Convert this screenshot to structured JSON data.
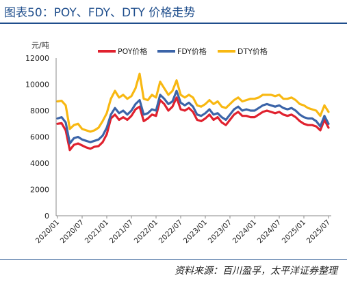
{
  "header": {
    "title": "图表50：POY、FDY、DTY 价格走势"
  },
  "footer": {
    "source": "资料来源：百川盈孚，太平洋证券整理"
  },
  "chart_data": {
    "type": "line",
    "unit_label": "元/吨",
    "ylim": [
      0,
      12000
    ],
    "yticks": [
      0,
      2000,
      4000,
      6000,
      8000,
      10000,
      12000
    ],
    "xticks": [
      "2020/01",
      "2020/07",
      "2021/01",
      "2021/07",
      "2022/01",
      "2022/07",
      "2023/01",
      "2023/07",
      "2024/01",
      "2024/07",
      "2025/01",
      "2025/07"
    ],
    "legend_position": "top",
    "grid": false,
    "x": [
      "2020/01",
      "2020/02",
      "2020/03",
      "2020/04",
      "2020/05",
      "2020/06",
      "2020/07",
      "2020/08",
      "2020/09",
      "2020/10",
      "2020/11",
      "2020/12",
      "2021/01",
      "2021/02",
      "2021/03",
      "2021/04",
      "2021/05",
      "2021/06",
      "2021/07",
      "2021/08",
      "2021/09",
      "2021/10",
      "2021/11",
      "2021/12",
      "2022/01",
      "2022/02",
      "2022/03",
      "2022/04",
      "2022/05",
      "2022/06",
      "2022/07",
      "2022/08",
      "2022/09",
      "2022/10",
      "2022/11",
      "2022/12",
      "2023/01",
      "2023/02",
      "2023/03",
      "2023/04",
      "2023/05",
      "2023/06",
      "2023/07",
      "2023/08",
      "2023/09",
      "2023/10",
      "2023/11",
      "2023/12",
      "2024/01",
      "2024/02",
      "2024/03",
      "2024/04",
      "2024/05",
      "2024/06",
      "2024/07",
      "2024/08",
      "2024/09",
      "2024/10",
      "2024/11",
      "2024/12",
      "2025/01",
      "2025/02",
      "2025/03",
      "2025/04",
      "2025/05",
      "2025/06",
      "2025/07"
    ],
    "series": [
      {
        "name": "POY价格",
        "color": "#e0212e",
        "values": [
          7000,
          7050,
          6500,
          5000,
          5400,
          5500,
          5350,
          5200,
          5100,
          5250,
          5300,
          5600,
          6200,
          7400,
          7700,
          7300,
          7500,
          7300,
          7600,
          8100,
          8300,
          7200,
          7400,
          7700,
          7600,
          8800,
          8500,
          8000,
          8300,
          9000,
          8100,
          8000,
          8200,
          7900,
          7300,
          7200,
          7400,
          7700,
          7300,
          7500,
          7100,
          6900,
          7300,
          7700,
          7900,
          7600,
          7600,
          7500,
          7500,
          7700,
          7900,
          8000,
          7900,
          7800,
          7900,
          7700,
          7600,
          7700,
          7500,
          7200,
          7000,
          6900,
          6900,
          6800,
          6500,
          7300,
          6700
        ]
      },
      {
        "name": "FDY价格",
        "color": "#3b64a8",
        "values": [
          7400,
          7500,
          7100,
          5500,
          5900,
          6000,
          5800,
          5700,
          5600,
          5700,
          5800,
          6100,
          6700,
          7700,
          8200,
          7800,
          8000,
          7700,
          8000,
          8500,
          8800,
          7700,
          7800,
          8100,
          8000,
          9200,
          8900,
          8500,
          8700,
          9500,
          8600,
          8400,
          8600,
          8300,
          7700,
          7600,
          7800,
          8100,
          7700,
          7800,
          7500,
          7300,
          7700,
          8100,
          8300,
          8000,
          8100,
          8000,
          8000,
          8200,
          8400,
          8500,
          8400,
          8300,
          8400,
          8200,
          8100,
          8200,
          8000,
          7700,
          7500,
          7400,
          7400,
          7200,
          6800,
          7600,
          7000
        ]
      },
      {
        "name": "DTY价格",
        "color": "#f8b812",
        "values": [
          8700,
          8750,
          8400,
          6600,
          6900,
          7000,
          6600,
          6500,
          6400,
          6500,
          6700,
          7200,
          7800,
          8900,
          9500,
          9000,
          9200,
          8900,
          9100,
          9700,
          10800,
          8900,
          8800,
          9200,
          9000,
          10200,
          9700,
          9200,
          9500,
          10300,
          9200,
          9000,
          9200,
          9000,
          8400,
          8300,
          8500,
          8800,
          8500,
          8700,
          8300,
          8200,
          8500,
          8800,
          9000,
          8700,
          8800,
          8900,
          8900,
          9000,
          9200,
          9200,
          9200,
          9100,
          9200,
          8900,
          8900,
          9000,
          8800,
          8500,
          8400,
          8200,
          8100,
          8000,
          7600,
          8400,
          7900
        ]
      }
    ]
  }
}
